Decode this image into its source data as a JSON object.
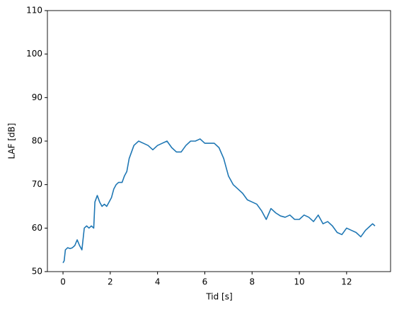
{
  "chart_data": {
    "type": "line",
    "xlabel": "Tid [s]",
    "ylabel": "LAF [dB]",
    "x": [
      0,
      0.05,
      0.1,
      0.2,
      0.3,
      0.4,
      0.5,
      0.6,
      0.7,
      0.8,
      0.9,
      1.0,
      1.1,
      1.2,
      1.3,
      1.35,
      1.45,
      1.55,
      1.65,
      1.75,
      1.85,
      1.95,
      2.05,
      2.15,
      2.25,
      2.35,
      2.5,
      2.6,
      2.7,
      2.8,
      2.9,
      3.0,
      3.1,
      3.2,
      3.4,
      3.6,
      3.8,
      4.0,
      4.2,
      4.4,
      4.6,
      4.8,
      5.0,
      5.2,
      5.4,
      5.6,
      5.8,
      6.0,
      6.2,
      6.4,
      6.6,
      6.8,
      7.0,
      7.2,
      7.4,
      7.6,
      7.8,
      8.0,
      8.2,
      8.4,
      8.6,
      8.8,
      9.0,
      9.2,
      9.4,
      9.6,
      9.8,
      10.0,
      10.2,
      10.4,
      10.6,
      10.8,
      11.0,
      11.2,
      11.4,
      11.6,
      11.8,
      12.0,
      12.2,
      12.4,
      12.6,
      12.8,
      13.0,
      13.1,
      13.2
    ],
    "values": [
      52,
      52.5,
      55,
      55.5,
      55.3,
      55.5,
      56,
      57.3,
      56,
      55,
      60,
      60.5,
      60,
      60.5,
      60,
      66,
      67.5,
      66,
      65,
      65.5,
      65,
      66,
      67,
      69,
      70,
      70.5,
      70.5,
      72,
      73,
      76,
      77.5,
      79,
      79.5,
      80,
      79.5,
      79,
      78,
      79,
      79.5,
      80,
      78.5,
      77.5,
      77.5,
      79,
      80,
      80,
      80.5,
      79.5,
      79.5,
      79.5,
      78.5,
      76,
      72,
      70,
      69,
      68,
      66.5,
      66,
      65.5,
      64,
      62,
      64.5,
      63.5,
      62.8,
      62.5,
      63,
      62,
      62,
      63,
      62.5,
      61.5,
      63,
      61,
      61.5,
      60.5,
      59,
      58.5,
      60,
      59.5,
      59,
      58,
      59.5,
      60.5,
      61,
      60.5
    ],
    "color": "#1f77b4",
    "xlim": [
      -0.66,
      13.86
    ],
    "xticks": [
      0,
      2,
      4,
      6,
      8,
      10,
      12
    ],
    "ylim": [
      50,
      110
    ],
    "yticks": [
      50,
      60,
      70,
      80,
      90,
      100,
      110
    ]
  }
}
